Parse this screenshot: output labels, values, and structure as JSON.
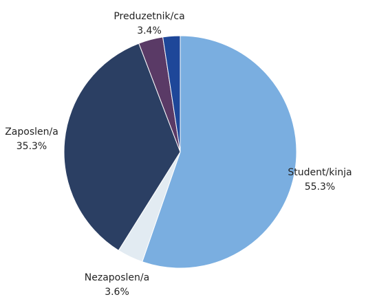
{
  "chart_data": {
    "type": "pie",
    "start_angle_deg": 0,
    "direction": "clockwise",
    "slices": [
      {
        "label": "Student/kinja",
        "value": 55.3,
        "value_label": "55.3%",
        "color": "#7aaee0"
      },
      {
        "label": "Nezaposlen/a",
        "value": 3.6,
        "value_label": "3.6%",
        "color": "#e2ebf2"
      },
      {
        "label": "Zaposlen/a",
        "value": 35.3,
        "value_label": "35.3%",
        "color": "#2b3f63"
      },
      {
        "label": "Preduzetnik/ca",
        "value": 3.4,
        "value_label": "3.4%",
        "color": "#5a3a66"
      },
      {
        "label": "",
        "value": 2.4,
        "value_label": "",
        "color": "#1e4799"
      }
    ]
  }
}
